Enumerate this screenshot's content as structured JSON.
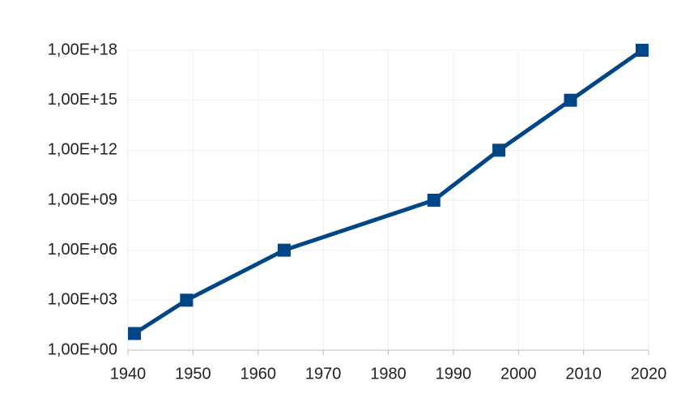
{
  "chart_data": {
    "type": "line",
    "x": [
      1941,
      1949,
      1964,
      1987,
      1997,
      2008,
      2019
    ],
    "series": [
      {
        "color": "#004586",
        "values": [
          10,
          1000,
          1000000,
          1000000000,
          1000000000000,
          1000000000000000,
          1e+18
        ]
      }
    ],
    "xlim": [
      1940,
      2020
    ],
    "xticks": [
      1940,
      1950,
      1960,
      1970,
      1980,
      1990,
      2000,
      2010,
      2020
    ],
    "ylim": [
      1,
      1e+18
    ],
    "yticks": [
      {
        "value": 1,
        "label": "1,00E+00"
      },
      {
        "value": 1000,
        "label": "1,00E+03"
      },
      {
        "value": 1000000,
        "label": "1,00E+06"
      },
      {
        "value": 1000000000,
        "label": "1,00E+09"
      },
      {
        "value": 1000000000000,
        "label": "1,00E+12"
      },
      {
        "value": 1000000000000000,
        "label": "1,00E+15"
      },
      {
        "value": 1e+18,
        "label": "1,00E+18"
      }
    ],
    "log_scale_y": true,
    "grid": true
  }
}
